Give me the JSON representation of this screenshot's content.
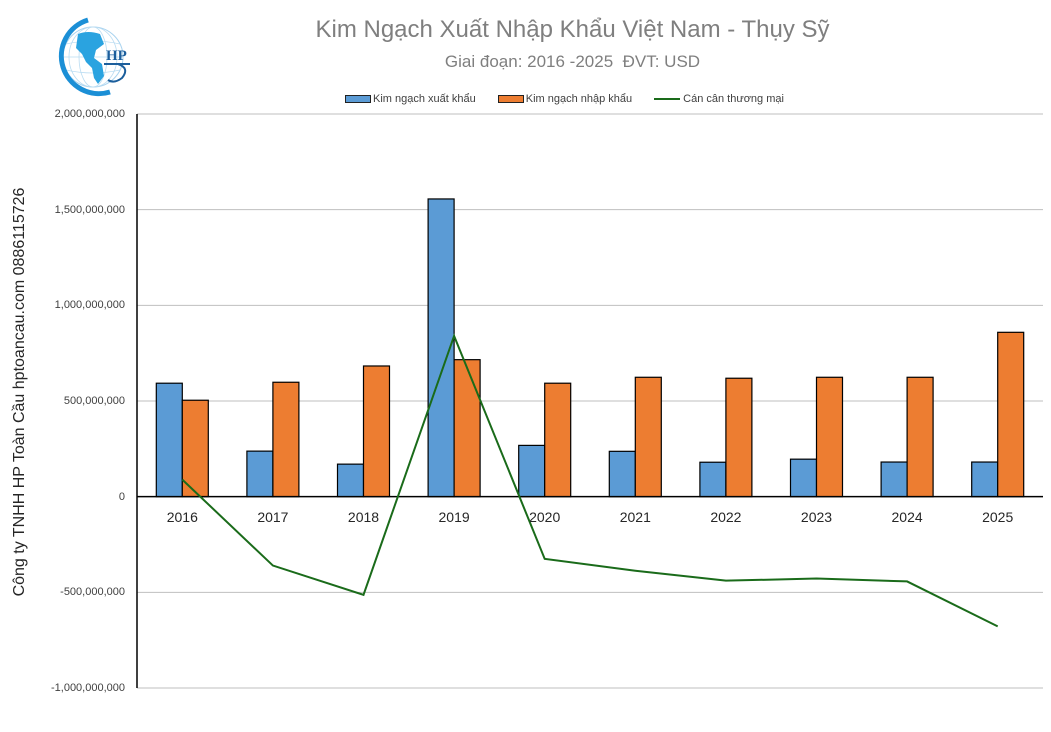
{
  "header": {
    "title": "Kim Ngạch Xuất Nhập Khẩu Việt Nam - Thụy Sỹ",
    "subtitle": "Giai đoạn: 2016 -2025  ĐVT: USD",
    "logo_text": "HP",
    "logo_icon": "globe-logo-icon"
  },
  "side_text": "Công ty TNHH HP Toàn Cầu hptoancau.com 0886115726",
  "legend": [
    {
      "label": "Kim ngạch xuất khẩu",
      "color": "#5B9BD5",
      "type": "bar"
    },
    {
      "label": "Kim ngạch nhập khẩu",
      "color": "#ED7D31",
      "type": "bar"
    },
    {
      "label": "Cán cân thương mại",
      "color": "#1A6B1A",
      "type": "line"
    }
  ],
  "y_ticks": [
    "2,000,000,000",
    "1,500,000,000",
    "1,000,000,000",
    "500,000,000",
    "0",
    "-500,000,000",
    "-1,000,000,000"
  ],
  "chart_data": {
    "type": "bar",
    "title": "Kim Ngạch Xuất Nhập Khẩu Việt Nam - Thụy Sỹ",
    "subtitle": "Giai đoạn: 2016 -2025  ĐVT: USD",
    "xlabel": "",
    "ylabel": "",
    "categories": [
      "2016",
      "2017",
      "2018",
      "2019",
      "2020",
      "2021",
      "2022",
      "2023",
      "2024",
      "2025"
    ],
    "series": [
      {
        "name": "Kim ngạch xuất khẩu",
        "type": "bar",
        "color": "#5B9BD5",
        "values": [
          593000000,
          238000000,
          170000000,
          1556000000,
          268000000,
          237000000,
          180000000,
          196000000,
          181000000,
          181000000
        ]
      },
      {
        "name": "Kim ngạch nhập khẩu",
        "type": "bar",
        "color": "#ED7D31",
        "values": [
          504000000,
          598000000,
          683000000,
          716000000,
          593000000,
          624000000,
          619000000,
          624000000,
          624000000,
          859000000
        ]
      },
      {
        "name": "Cán cân thương mại",
        "type": "line",
        "color": "#1A6B1A",
        "values": [
          89000000,
          -360000000,
          -513000000,
          840000000,
          -325000000,
          -387000000,
          -439000000,
          -428000000,
          -443000000,
          -678000000
        ]
      }
    ],
    "ylim": [
      -1000000000,
      2000000000
    ],
    "yticks": [
      -1000000000,
      -500000000,
      0,
      500000000,
      1000000000,
      1500000000,
      2000000000
    ],
    "grid": true,
    "legend_position": "top"
  }
}
